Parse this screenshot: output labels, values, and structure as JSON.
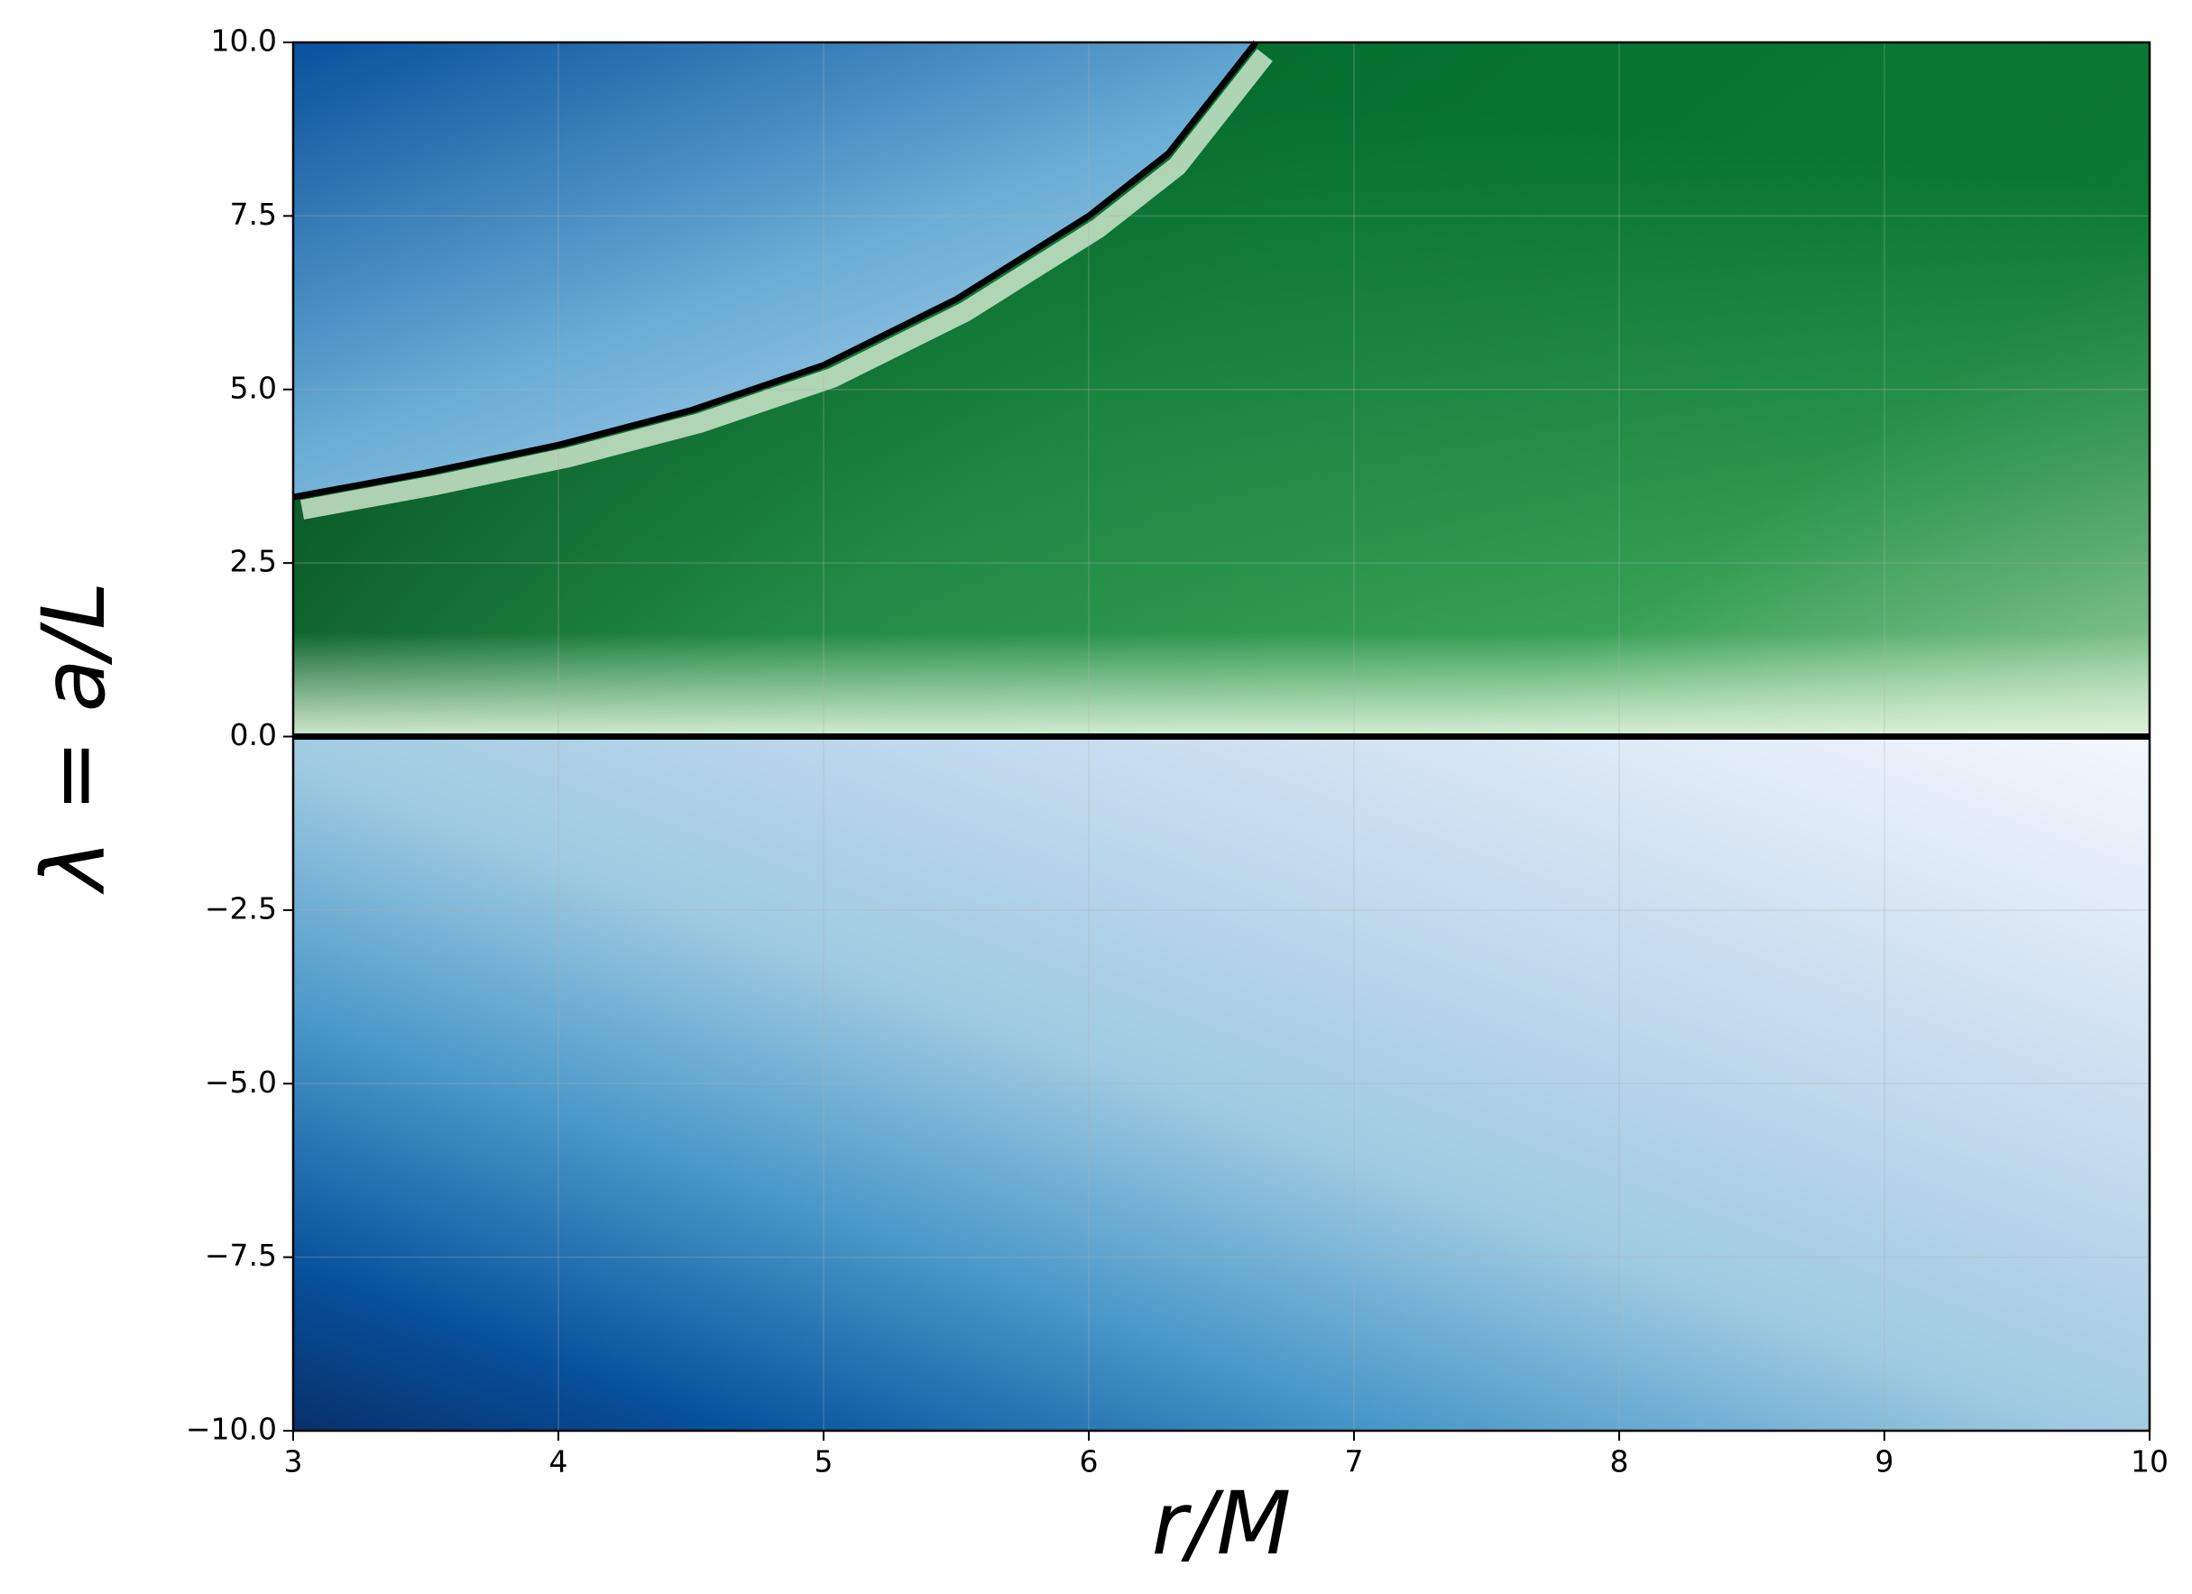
{
  "chart_data": {
    "type": "heatmap",
    "xlabel": "r/M",
    "ylabel": "λ = a/L",
    "xlim": [
      3,
      10
    ],
    "ylim": [
      -10,
      10
    ],
    "xticks": [
      3,
      4,
      5,
      6,
      7,
      8,
      9,
      10
    ],
    "yticks": [
      {
        "value": -10,
        "label": "−10.0"
      },
      {
        "value": -7.5,
        "label": "−7.5"
      },
      {
        "value": -5,
        "label": "−5.0"
      },
      {
        "value": -2.5,
        "label": "−2.5"
      },
      {
        "value": 0,
        "label": "0.0"
      },
      {
        "value": 2.5,
        "label": "2.5"
      },
      {
        "value": 5,
        "label": "5.0"
      },
      {
        "value": 7.5,
        "label": "7.5"
      },
      {
        "value": 10,
        "label": "10.0"
      }
    ],
    "grid": true,
    "lines": [
      {
        "x": [
          3,
          3.5,
          4,
          4.5,
          5,
          5.5,
          6,
          6.3,
          6.63
        ],
        "y": [
          3.45,
          3.8,
          4.2,
          4.7,
          5.35,
          6.3,
          7.5,
          8.4,
          10
        ],
        "color": "#000000"
      },
      {
        "x": [
          3,
          10
        ],
        "y": [
          0,
          0
        ],
        "color": "#000000"
      }
    ]
  }
}
